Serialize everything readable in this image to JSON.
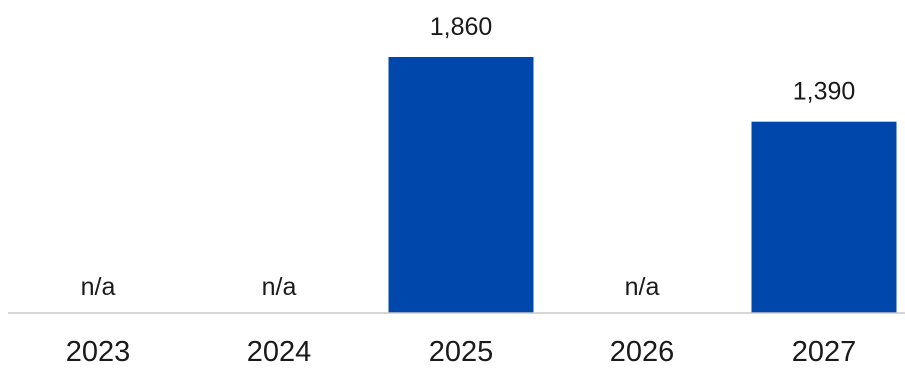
{
  "chart_data": {
    "type": "bar",
    "title": "",
    "xlabel": "",
    "ylabel": "",
    "categories": [
      "2023",
      "2024",
      "2025",
      "2026",
      "2027"
    ],
    "values": [
      null,
      null,
      1860,
      null,
      1390
    ],
    "data_labels": [
      "n/a",
      "n/a",
      "1,860",
      "n/a",
      "1,390"
    ],
    "ylim": [
      0,
      1860
    ],
    "grid": false,
    "legend": "none",
    "bar_color": "#0047AB",
    "axis_color": "#c8c8c8",
    "text_color": "#1a1a1a"
  }
}
